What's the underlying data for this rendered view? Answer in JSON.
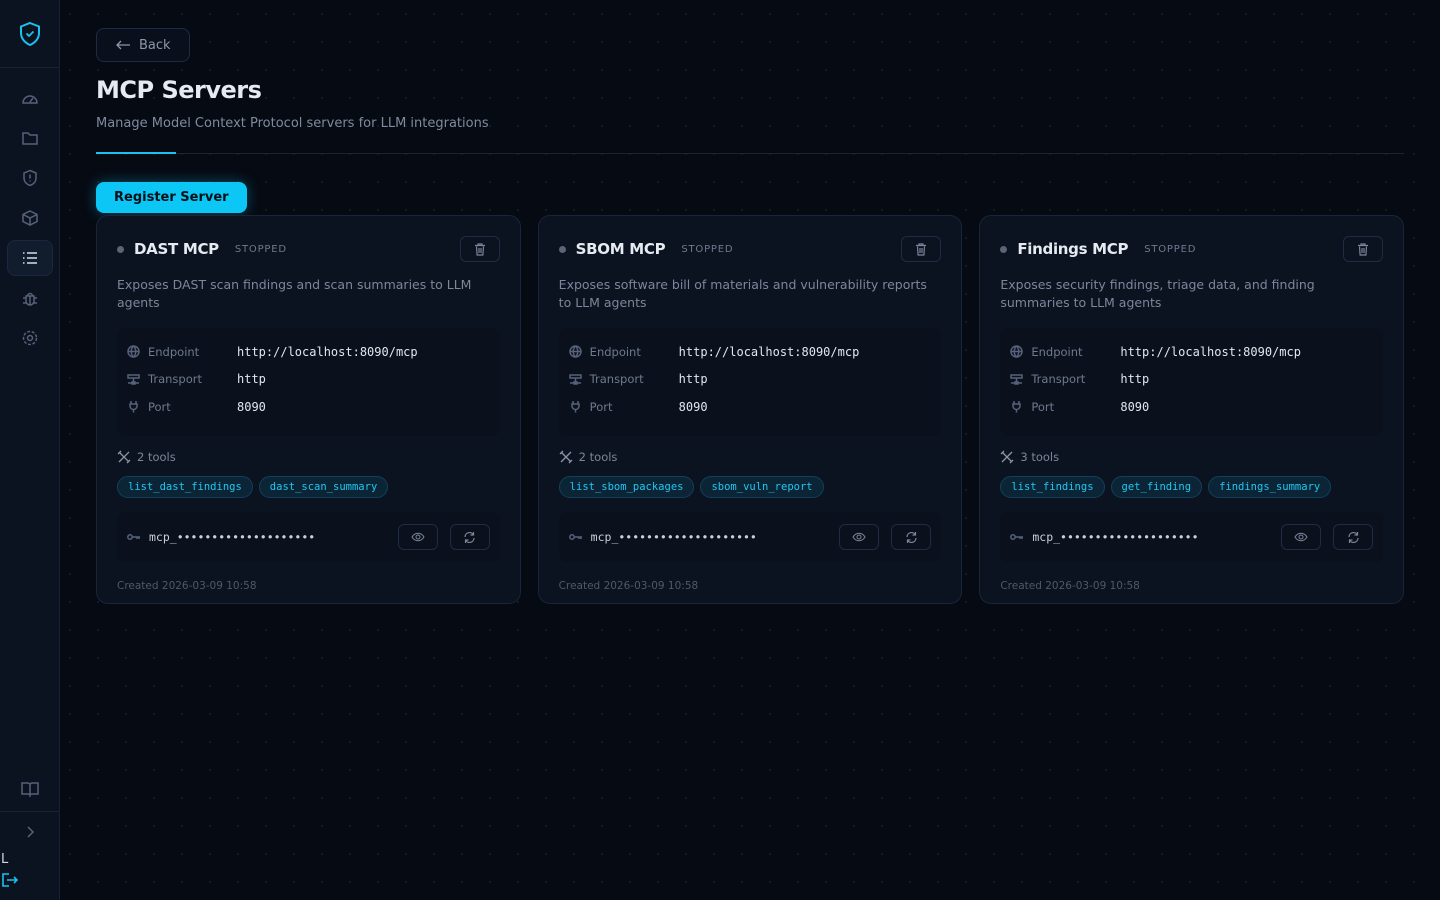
{
  "sidebar": {
    "items": [
      "dashboard",
      "projects",
      "security",
      "packages",
      "mcp-servers",
      "bugs",
      "settings"
    ],
    "user_initial": "L"
  },
  "header": {
    "back_label": "Back",
    "title": "MCP Servers",
    "subtitle": "Manage Model Context Protocol servers for LLM integrations",
    "register_label": "Register Server"
  },
  "labels": {
    "endpoint": "Endpoint",
    "transport": "Transport",
    "port": "Port"
  },
  "servers": [
    {
      "name": "DAST MCP",
      "status": "STOPPED",
      "description": "Exposes DAST scan findings and scan summaries to LLM agents",
      "endpoint": "http://localhost:8090/mcp",
      "transport": "http",
      "port": "8090",
      "tools_count": "2 tools",
      "tools": [
        "list_dast_findings",
        "dast_scan_summary"
      ],
      "key": "mcp_••••••••••••••••••••",
      "created": "Created 2026-03-09 10:58"
    },
    {
      "name": "SBOM MCP",
      "status": "STOPPED",
      "description": "Exposes software bill of materials and vulnerability reports to LLM agents",
      "endpoint": "http://localhost:8090/mcp",
      "transport": "http",
      "port": "8090",
      "tools_count": "2 tools",
      "tools": [
        "list_sbom_packages",
        "sbom_vuln_report"
      ],
      "key": "mcp_••••••••••••••••••••",
      "created": "Created 2026-03-09 10:58"
    },
    {
      "name": "Findings MCP",
      "status": "STOPPED",
      "description": "Exposes security findings, triage data, and finding summaries to LLM agents",
      "endpoint": "http://localhost:8090/mcp",
      "transport": "http",
      "port": "8090",
      "tools_count": "3 tools",
      "tools": [
        "list_findings",
        "get_finding",
        "findings_summary"
      ],
      "key": "mcp_••••••••••••••••••••",
      "created": "Created 2026-03-09 10:58"
    }
  ]
}
